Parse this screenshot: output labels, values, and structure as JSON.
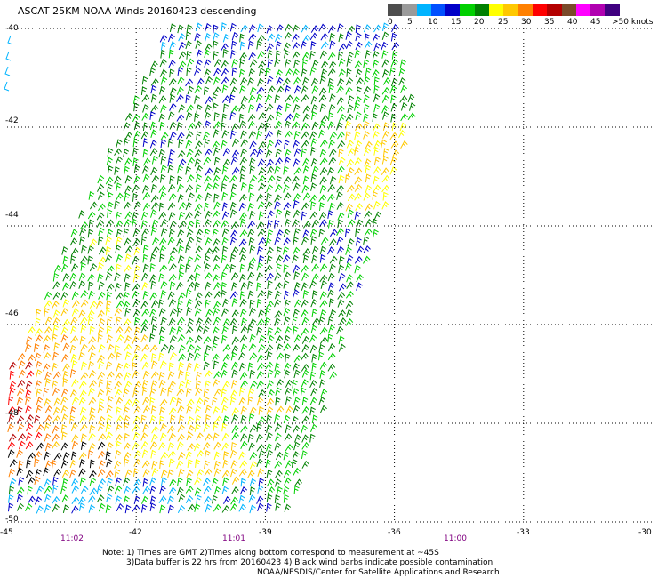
{
  "title": "ASCAT 25KM NOAA Winds 20160423 descending",
  "legend": {
    "colors": [
      "#4d4d4d",
      "#9a9a9a",
      "#00b4ff",
      "#0050ff",
      "#0000c8",
      "#00d000",
      "#008000",
      "#ffff00",
      "#ffc800",
      "#ff8000",
      "#ff0000",
      "#b40000",
      "#7a4a2a",
      "#ff00ff",
      "#b000b0",
      "#400080"
    ],
    "labels": [
      "0",
      "5",
      "10",
      "15",
      "20",
      "25",
      "30",
      "35",
      "40",
      "45",
      ">50 knots"
    ]
  },
  "axes": {
    "lat_labels": [
      "-40",
      "-42",
      "-44",
      "-46",
      "-48",
      "-50"
    ],
    "lon_labels": [
      "-45",
      "-42",
      "-39",
      "-36",
      "-33",
      "-30"
    ]
  },
  "times": [
    "11:02",
    "11:01",
    "11:00"
  ],
  "notes": [
    "Note: 1) Times are GMT 2)Times along bottom correspond to measurement at ~45S",
    "3)Data buffer is 22 hrs from 20160423 4) Black wind barbs indicate possible contamination",
    "NOAA/NESDIS/Center for Satellite Applications and Research"
  ],
  "map_data": {
    "lon_range": [
      -45,
      -30
    ],
    "lat_range": [
      -50,
      -40
    ],
    "grid": true,
    "swath_corners": [
      [
        -41.3,
        -40.0
      ],
      [
        -36.0,
        -40.0
      ],
      [
        -35.6,
        -41.8
      ],
      [
        -38.5,
        -50.0
      ],
      [
        -45.0,
        -50.0
      ],
      [
        -45.0,
        -47.0
      ]
    ],
    "colors": {
      "calm": "#00b4ff",
      "low": "#0000c8",
      "mid": "#00d000",
      "mid_dark": "#008000",
      "high": "#ffff00",
      "higher": "#ffc800",
      "strong": "#ff8000",
      "very_strong": "#ff0000",
      "severe": "#b40000",
      "contaminated": "#000000"
    }
  }
}
